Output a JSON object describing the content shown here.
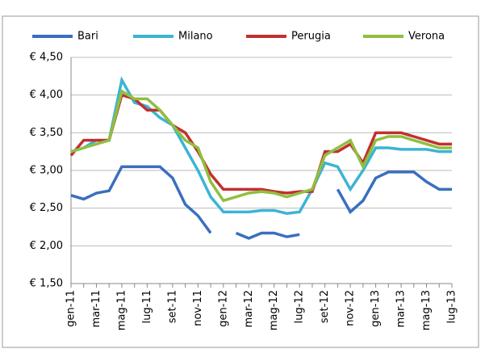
{
  "chart_data": {
    "type": "line",
    "categories": [
      "gen-11",
      null,
      "mar-11",
      null,
      "mag-11",
      null,
      "lug-11",
      null,
      "set-11",
      null,
      "nov-11",
      null,
      "gen-12",
      null,
      "mar-12",
      null,
      "mag-12",
      null,
      "lug-12",
      null,
      "set-12",
      null,
      "nov-12",
      null,
      "gen-13",
      null,
      "mar-13",
      null,
      "mag-13",
      null,
      "lug-13"
    ],
    "series": [
      {
        "name": "Bari",
        "color": "#3a6fbf",
        "values": [
          2.67,
          2.62,
          2.7,
          2.73,
          3.05,
          3.05,
          3.05,
          3.05,
          2.9,
          2.55,
          2.4,
          2.17,
          null,
          2.17,
          2.1,
          2.17,
          2.17,
          2.12,
          2.15,
          null,
          null,
          2.75,
          2.45,
          2.6,
          2.9,
          2.98,
          2.98,
          2.98,
          2.85,
          2.75,
          2.75
        ]
      },
      {
        "name": "Milano",
        "color": "#3cb4d4",
        "values": [
          3.25,
          3.3,
          3.4,
          3.4,
          4.2,
          3.9,
          3.85,
          3.7,
          3.6,
          3.3,
          3.0,
          2.65,
          2.45,
          2.45,
          2.45,
          2.47,
          2.47,
          2.43,
          2.45,
          2.75,
          3.1,
          3.05,
          2.75,
          3.0,
          3.3,
          3.3,
          3.28,
          3.28,
          3.28,
          3.25,
          3.25
        ]
      },
      {
        "name": "Perugia",
        "color": "#c0312f",
        "values": [
          3.2,
          3.4,
          3.4,
          3.4,
          4.0,
          3.95,
          3.8,
          3.8,
          3.6,
          3.5,
          3.25,
          2.95,
          2.75,
          2.75,
          2.75,
          2.75,
          2.72,
          2.7,
          2.72,
          2.72,
          3.25,
          3.25,
          3.35,
          3.1,
          3.5,
          3.5,
          3.5,
          3.45,
          3.4,
          3.35,
          3.35
        ]
      },
      {
        "name": "Verona",
        "color": "#8fbf40",
        "values": [
          3.25,
          3.3,
          3.35,
          3.4,
          4.05,
          3.95,
          3.95,
          3.8,
          3.6,
          3.4,
          3.3,
          2.85,
          2.6,
          2.65,
          2.7,
          2.72,
          2.7,
          2.65,
          2.7,
          2.75,
          3.2,
          3.3,
          3.4,
          3.05,
          3.4,
          3.45,
          3.45,
          3.4,
          3.35,
          3.3,
          3.3
        ]
      }
    ],
    "ylim": [
      1.5,
      4.5
    ],
    "yticks": [
      {
        "value": 1.5,
        "label": "€ 1,50"
      },
      {
        "value": 2.0,
        "label": "€ 2,00"
      },
      {
        "value": 2.5,
        "label": "€ 2,50"
      },
      {
        "value": 3.0,
        "label": "€ 3,00"
      },
      {
        "value": 3.5,
        "label": "€ 3,50"
      },
      {
        "value": 4.0,
        "label": "€ 4,00"
      },
      {
        "value": 4.5,
        "label": "€ 4,50"
      }
    ],
    "grid": true,
    "legend": "top"
  }
}
